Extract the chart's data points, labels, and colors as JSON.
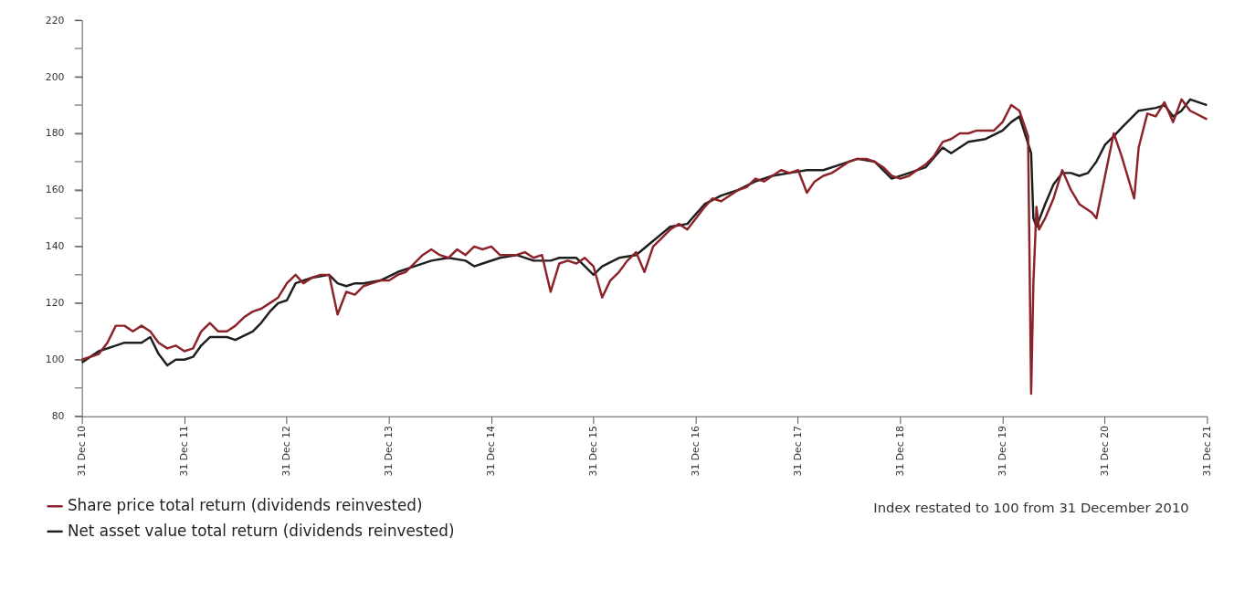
{
  "chart_data": {
    "type": "line",
    "annotations": [
      "Index restated to 100 from 31 December 2010"
    ],
    "xlim": [
      "2010-12-31",
      "2021-12-31"
    ],
    "xticks": [
      {
        "value": "2010-12-31",
        "label": "31 Dec 10"
      },
      {
        "value": "2011-12-31",
        "label": "31 Dec 11"
      },
      {
        "value": "2012-12-31",
        "label": "31 Dec 12"
      },
      {
        "value": "2013-12-31",
        "label": "31 Dec 13"
      },
      {
        "value": "2014-12-31",
        "label": "31 Dec 14"
      },
      {
        "value": "2015-12-31",
        "label": "31 Dec 15"
      },
      {
        "value": "2016-12-31",
        "label": "31 Dec 16"
      },
      {
        "value": "2017-12-31",
        "label": "31 Dec 17"
      },
      {
        "value": "2018-12-31",
        "label": "31 Dec 18"
      },
      {
        "value": "2019-12-31",
        "label": "31 Dec 19"
      },
      {
        "value": "2020-12-31",
        "label": "31 Dec 20"
      },
      {
        "value": "2021-12-31",
        "label": "31 Dec 21"
      }
    ],
    "ylim": [
      80,
      220
    ],
    "yticks": [
      80,
      {
        "value": 90,
        "label": null
      },
      100,
      {
        "value": 110,
        "label": null
      },
      120,
      {
        "value": 130,
        "label": null
      },
      140,
      {
        "value": 150,
        "label": null
      },
      160,
      {
        "value": 170,
        "label": null
      },
      180,
      {
        "value": 190,
        "label": null
      },
      200,
      {
        "value": 210,
        "label": null
      },
      220
    ],
    "grid": false,
    "legend": "bottom left",
    "line_style": "solid",
    "series": [
      {
        "name": "Share price total return (dividends reinvested)",
        "color": "#8b2329",
        "x": [
          "2010-12-31",
          "2011-03",
          "2011-04",
          "2011-05",
          "2011-06",
          "2011-07",
          "2011-08",
          "2011-09",
          "2011-10",
          "2011-11",
          "2011-12",
          "2012-01",
          "2012-02",
          "2012-03",
          "2012-04",
          "2012-05",
          "2012-06",
          "2012-07",
          "2012-08",
          "2012-09",
          "2012-10",
          "2012-11",
          "2012-12",
          "2013-01",
          "2013-02",
          "2013-03",
          "2013-04",
          "2013-05",
          "2013-06",
          "2013-07",
          "2013-08",
          "2013-09",
          "2013-10",
          "2013-11",
          "2013-12",
          "2014-01",
          "2014-02",
          "2014-03",
          "2014-04",
          "2014-05",
          "2014-06",
          "2014-07",
          "2014-08",
          "2014-09",
          "2014-10",
          "2014-11",
          "2014-12",
          "2015-01",
          "2015-02",
          "2015-03",
          "2015-04",
          "2015-05",
          "2015-06",
          "2015-07",
          "2015-08",
          "2015-09",
          "2015-10",
          "2015-11",
          "2015-12",
          "2016-01",
          "2016-02",
          "2016-03",
          "2016-04",
          "2016-05",
          "2016-06",
          "2016-07",
          "2016-08",
          "2016-09",
          "2016-10",
          "2016-11",
          "2016-12",
          "2017-01",
          "2017-02",
          "2017-03",
          "2017-04",
          "2017-05",
          "2017-06",
          "2017-07",
          "2017-08",
          "2017-09",
          "2017-10",
          "2017-11",
          "2017-12",
          "2018-01",
          "2018-02",
          "2018-03",
          "2018-04",
          "2018-05",
          "2018-06",
          "2018-07",
          "2018-08",
          "2018-09",
          "2018-10",
          "2018-11",
          "2018-12",
          "2019-01",
          "2019-02",
          "2019-03",
          "2019-04",
          "2019-05",
          "2019-06",
          "2019-07",
          "2019-08",
          "2019-09",
          "2019-10",
          "2019-11",
          "2019-12",
          "2020-01",
          "2020-02",
          "2020-03",
          "2020-04-01",
          "2020-04-12",
          "2020-04-20",
          "2020-05-01",
          "2020-05-10",
          "2020-06-01",
          "2020-07-01",
          "2020-08-01",
          "2020-09",
          "2020-10",
          "2020-11-15",
          "2020-12",
          "2021-01",
          "2021-02",
          "2021-03",
          "2021-04-15",
          "2021-05",
          "2021-06",
          "2021-07",
          "2021-08",
          "2021-09",
          "2021-10",
          "2021-11",
          "2021-12-31"
        ],
        "values": [
          100,
          102,
          106,
          112,
          112,
          110,
          112,
          110,
          106,
          104,
          105,
          103,
          104,
          110,
          113,
          110,
          110,
          112,
          115,
          117,
          118,
          120,
          122,
          127,
          130,
          127,
          129,
          130,
          130,
          116,
          124,
          123,
          126,
          127,
          128,
          128,
          130,
          131,
          134,
          137,
          139,
          137,
          136,
          139,
          137,
          140,
          139,
          140,
          137,
          137,
          137,
          138,
          136,
          137,
          124,
          134,
          135,
          134,
          136,
          133,
          122,
          128,
          131,
          135,
          138,
          131,
          140,
          143,
          146,
          148,
          146,
          150,
          154,
          157,
          156,
          158,
          160,
          161,
          164,
          163,
          165,
          167,
          166,
          167,
          159,
          163,
          165,
          166,
          168,
          170,
          171,
          171,
          170,
          168,
          165,
          164,
          165,
          167,
          169,
          172,
          177,
          178,
          180,
          180,
          181,
          181,
          181,
          184,
          190,
          188,
          179,
          88,
          127,
          154,
          146,
          150,
          157,
          167,
          160,
          155,
          152,
          150,
          165,
          180,
          172,
          157,
          175,
          187,
          186,
          191,
          184,
          192,
          188,
          185
        ]
      },
      {
        "name": "Net asset value total return (dividends reinvested)",
        "color": "#1e1e1e",
        "x": [
          "2010-12-31",
          "2011-03",
          "2011-05",
          "2011-06",
          "2011-08",
          "2011-09",
          "2011-10",
          "2011-11",
          "2011-12",
          "2012-01",
          "2012-02",
          "2012-03",
          "2012-04",
          "2012-06",
          "2012-07",
          "2012-09",
          "2012-10",
          "2012-11",
          "2012-12",
          "2013-01",
          "2013-02",
          "2013-03",
          "2013-04",
          "2013-06",
          "2013-07",
          "2013-08",
          "2013-09",
          "2013-10",
          "2013-12",
          "2014-02",
          "2014-04",
          "2014-06",
          "2014-08",
          "2014-10",
          "2014-11",
          "2014-12",
          "2015-02",
          "2015-04",
          "2015-06",
          "2015-08",
          "2015-09",
          "2015-11",
          "2016-01",
          "2016-02",
          "2016-04",
          "2016-06",
          "2016-08",
          "2016-10",
          "2016-12",
          "2017-02",
          "2017-04",
          "2017-06",
          "2017-08",
          "2017-10",
          "2017-12",
          "2018-02",
          "2018-04",
          "2018-06",
          "2018-08",
          "2018-10",
          "2018-12",
          "2019-02",
          "2019-04",
          "2019-06",
          "2019-07",
          "2019-09",
          "2019-11",
          "2020-01",
          "2020-02",
          "2020-03",
          "2020-04-12",
          "2020-04-20",
          "2020-05-01",
          "2020-06-01",
          "2020-07-01",
          "2020-08",
          "2020-09",
          "2020-10",
          "2020-11",
          "2020-12",
          "2021-01",
          "2021-02",
          "2021-03",
          "2021-05",
          "2021-07",
          "2021-08",
          "2021-09",
          "2021-10",
          "2021-11",
          "2021-12-31"
        ],
        "values": [
          99,
          103,
          105,
          106,
          106,
          108,
          102,
          98,
          100,
          100,
          101,
          105,
          108,
          108,
          107,
          110,
          113,
          117,
          120,
          121,
          127,
          128,
          129,
          130,
          127,
          126,
          127,
          127,
          128,
          131,
          133,
          135,
          136,
          135,
          133,
          134,
          136,
          137,
          135,
          135,
          136,
          136,
          130,
          133,
          136,
          137,
          142,
          147,
          148,
          155,
          158,
          160,
          163,
          165,
          166,
          167,
          167,
          169,
          171,
          170,
          164,
          166,
          168,
          175,
          173,
          177,
          178,
          181,
          184,
          186,
          173,
          150,
          147,
          155,
          162,
          166,
          166,
          165,
          166,
          170,
          176,
          179,
          182,
          188,
          189,
          190,
          186,
          188,
          192,
          190
        ]
      }
    ]
  }
}
